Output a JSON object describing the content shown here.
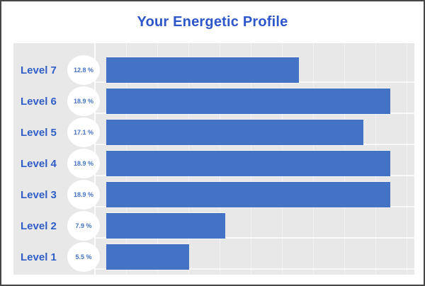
{
  "window": {
    "title": "Your Energetic Profile"
  },
  "theme": {
    "page_bg": "#ffffff",
    "frame_border": "#474747",
    "panel_bg": "#e9e8e9",
    "bar_color": "#4472c4",
    "title_color": "#2d56cb",
    "label_color": "#2e5ec6",
    "badge_bg": "#ffffff",
    "badge_text_color": "#4472c4",
    "gridline_color": "#f2f1f3"
  },
  "chart_data": {
    "type": "bar",
    "orientation": "horizontal",
    "title": "Your Energetic Profile",
    "categories": [
      "Level 7",
      "Level 6",
      "Level 5",
      "Level 4",
      "Level 3",
      "Level 2",
      "Level 1"
    ],
    "values": [
      12.8,
      18.9,
      17.1,
      18.9,
      18.9,
      7.9,
      5.5
    ],
    "value_labels": [
      "12.8 %",
      "18.9 %",
      "17.1 %",
      "18.9 %",
      "18.9 %",
      "7.9 %",
      "5.5 %"
    ],
    "xlabel": "",
    "ylabel": "",
    "xlim": [
      0,
      20.5
    ],
    "grid": true,
    "legend": false
  }
}
